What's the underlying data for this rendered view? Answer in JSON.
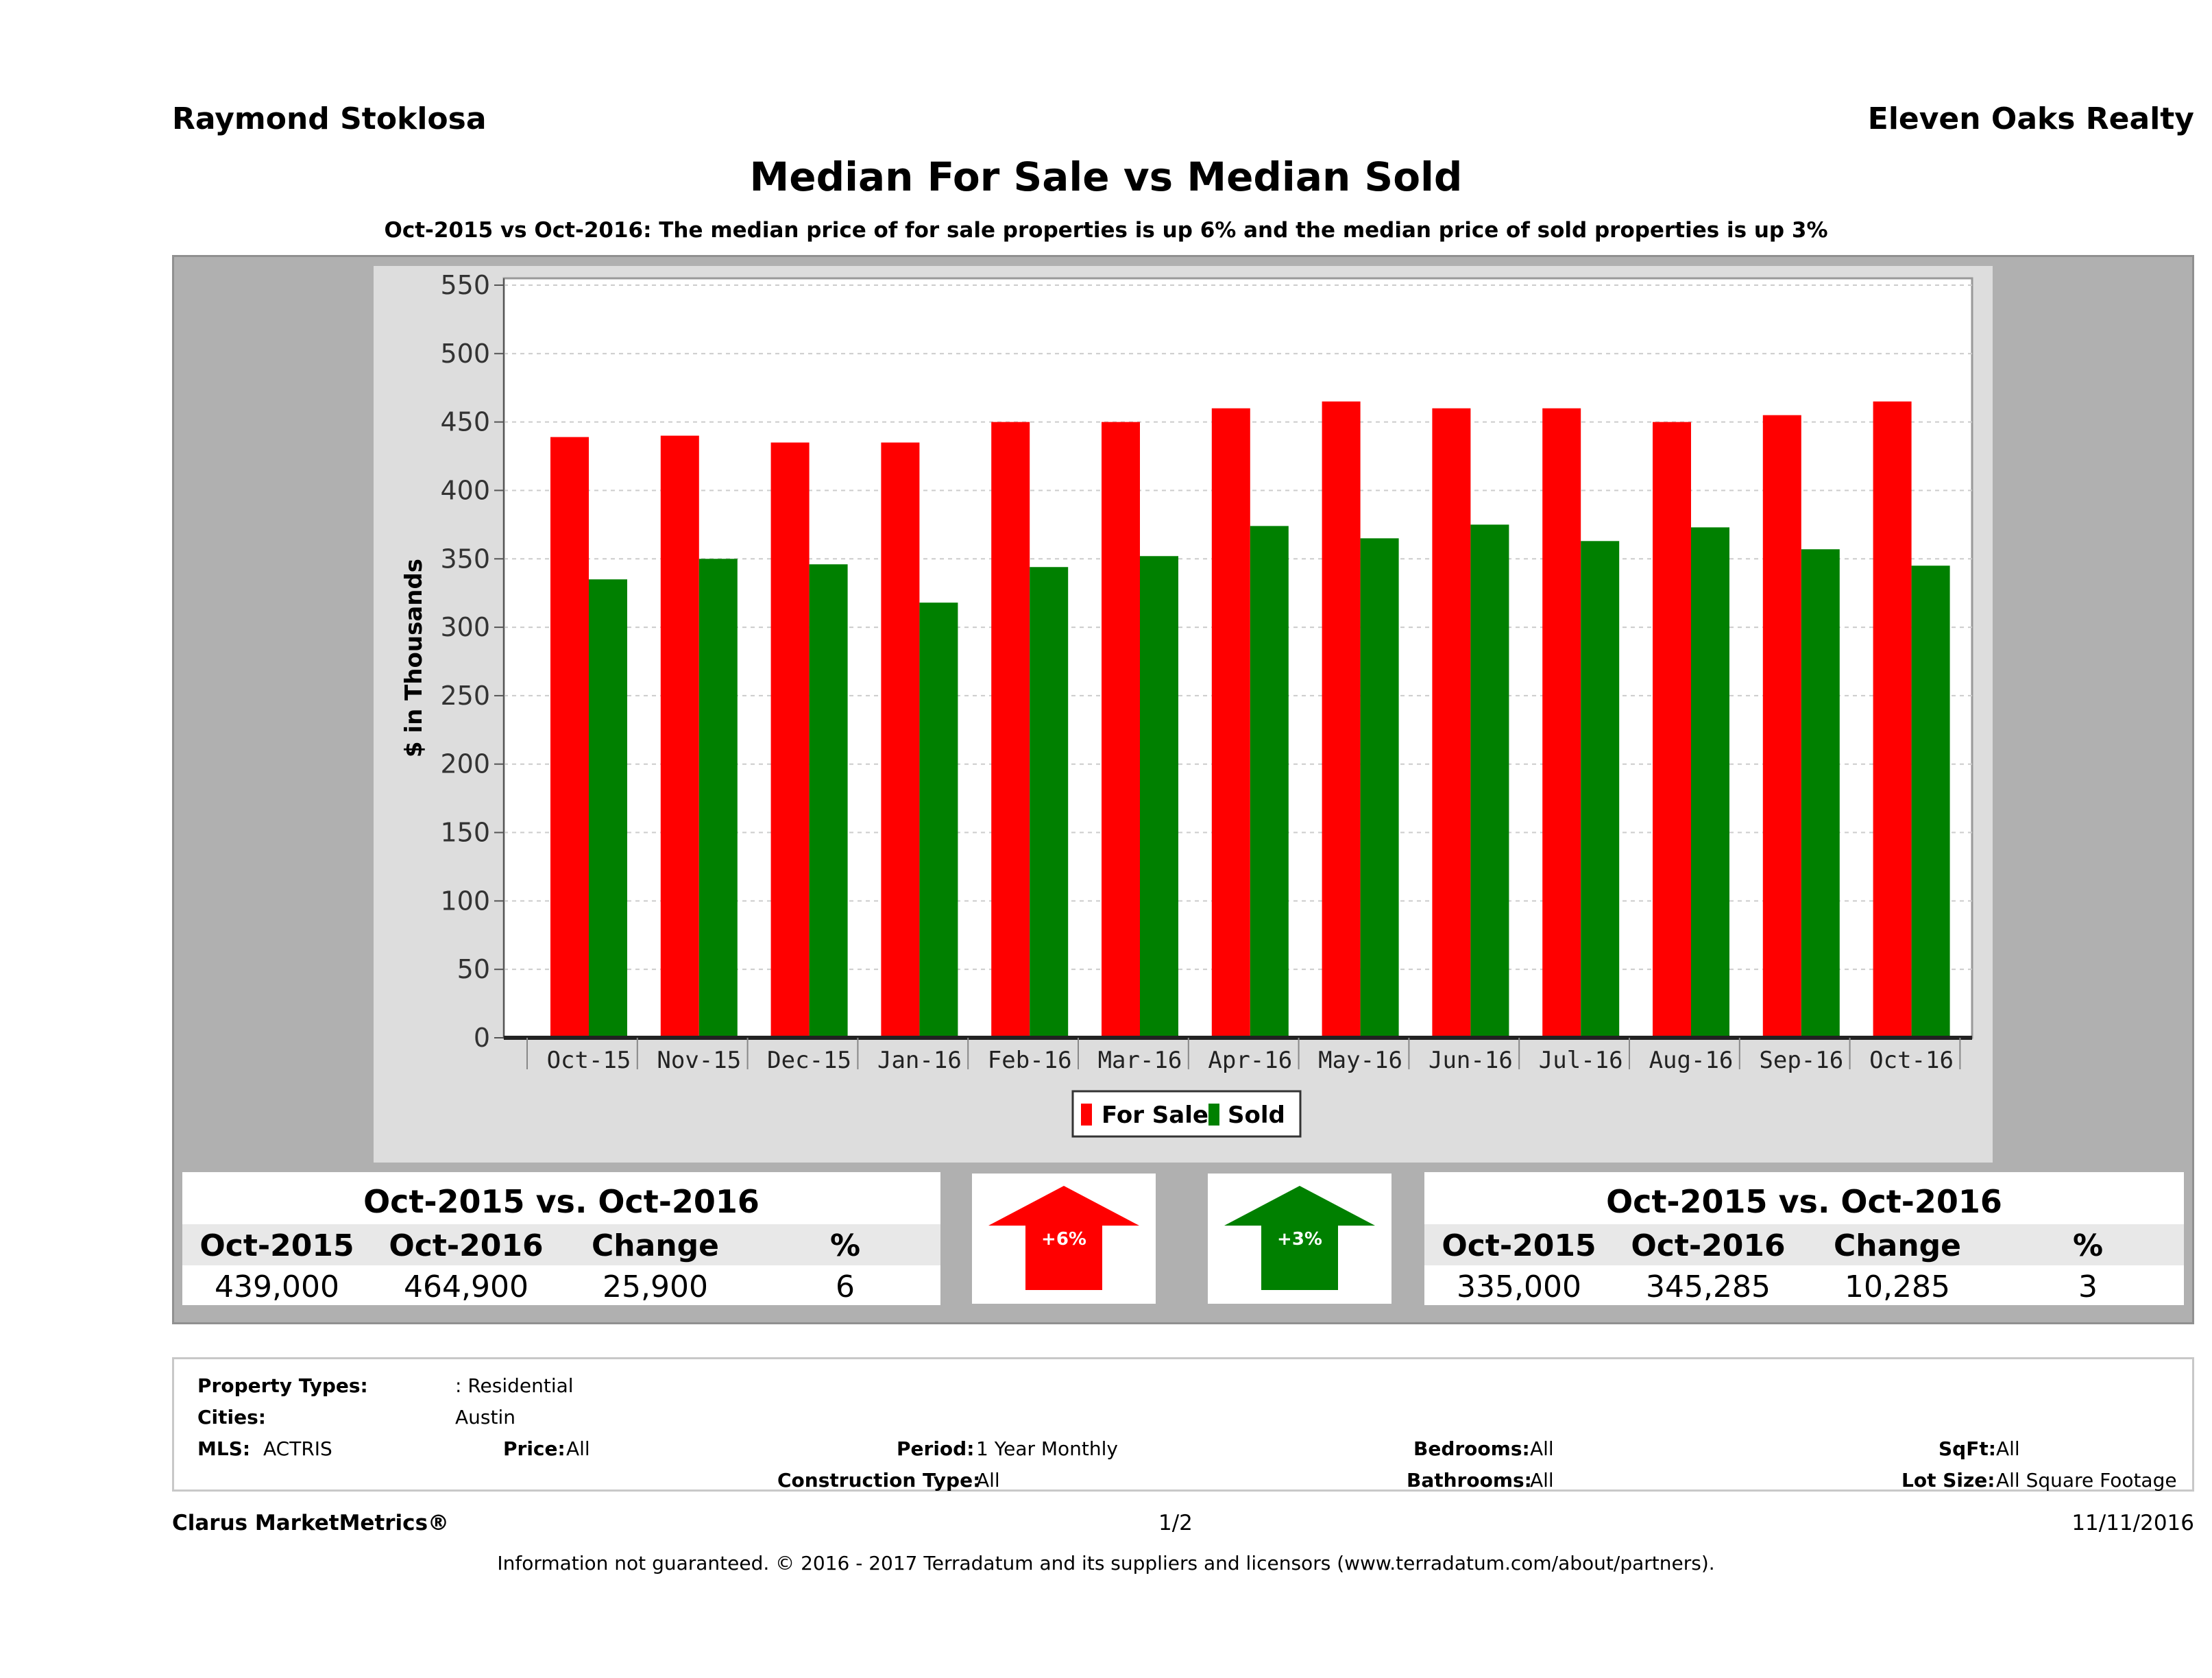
{
  "header": {
    "agent_name": "Raymond Stoklosa",
    "brokerage": "Eleven Oaks Realty"
  },
  "chart_title": "Median For Sale vs Median Sold",
  "chart_subtitle": "Oct-2015 vs Oct-2016: The median price of for sale properties is up 6% and the median price of sold properties is up 3%",
  "chart_data": {
    "type": "bar",
    "ylabel": "$ in Thousands",
    "xlabel": "",
    "ylim": [
      0,
      550
    ],
    "yticks": [
      0,
      50,
      100,
      150,
      200,
      250,
      300,
      350,
      400,
      450,
      500,
      550
    ],
    "grid": true,
    "legend_position": "bottom",
    "categories": [
      "Oct-15",
      "Nov-15",
      "Dec-15",
      "Jan-16",
      "Feb-16",
      "Mar-16",
      "Apr-16",
      "May-16",
      "Jun-16",
      "Jul-16",
      "Aug-16",
      "Sep-16",
      "Oct-16"
    ],
    "series": [
      {
        "name": "For Sale",
        "color": "#ff0000",
        "values": [
          439,
          440,
          435,
          435,
          450,
          450,
          460,
          465,
          460,
          460,
          450,
          455,
          465
        ]
      },
      {
        "name": "Sold",
        "color": "#008000",
        "values": [
          335,
          350,
          346,
          318,
          344,
          352,
          374,
          365,
          375,
          363,
          373,
          357,
          345
        ]
      }
    ]
  },
  "for_sale_summary": {
    "title": "Oct-2015 vs. Oct-2016",
    "headers": [
      "Oct-2015",
      "Oct-2016",
      "Change",
      "%"
    ],
    "values": [
      "439,000",
      "464,900",
      "25,900",
      "6"
    ],
    "arrow_label": "+6%",
    "arrow_color": "#ff0000"
  },
  "sold_summary": {
    "title": "Oct-2015 vs. Oct-2016",
    "headers": [
      "Oct-2015",
      "Oct-2016",
      "Change",
      "%"
    ],
    "values": [
      "335,000",
      "345,285",
      "10,285",
      "3"
    ],
    "arrow_label": "+3%",
    "arrow_color": "#008000"
  },
  "criteria": {
    "property_types_label": "Property Types:",
    "property_types_value": ": Residential",
    "cities_label": "Cities:",
    "cities_value": "Austin",
    "mls_label": "MLS:",
    "mls_value": "ACTRIS",
    "price_label": "Price:",
    "price_value": "All",
    "period_label": "Period:",
    "period_value": "1 Year Monthly",
    "bedrooms_label": "Bedrooms:",
    "bedrooms_value": "All",
    "sqft_label": "SqFt:",
    "sqft_value": "All",
    "construction_label": "Construction Type:",
    "construction_value": "All",
    "bathrooms_label": "Bathrooms:",
    "bathrooms_value": "All",
    "lot_size_label": "Lot Size:",
    "lot_size_value": "All Square Footage"
  },
  "footer": {
    "brand": "Clarus MarketMetrics®",
    "page": "1/2",
    "date": "11/11/2016",
    "disclaimer": "Information not guaranteed. © 2016 - 2017 Terradatum and its suppliers and licensors (www.terradatum.com/about/partners)."
  }
}
